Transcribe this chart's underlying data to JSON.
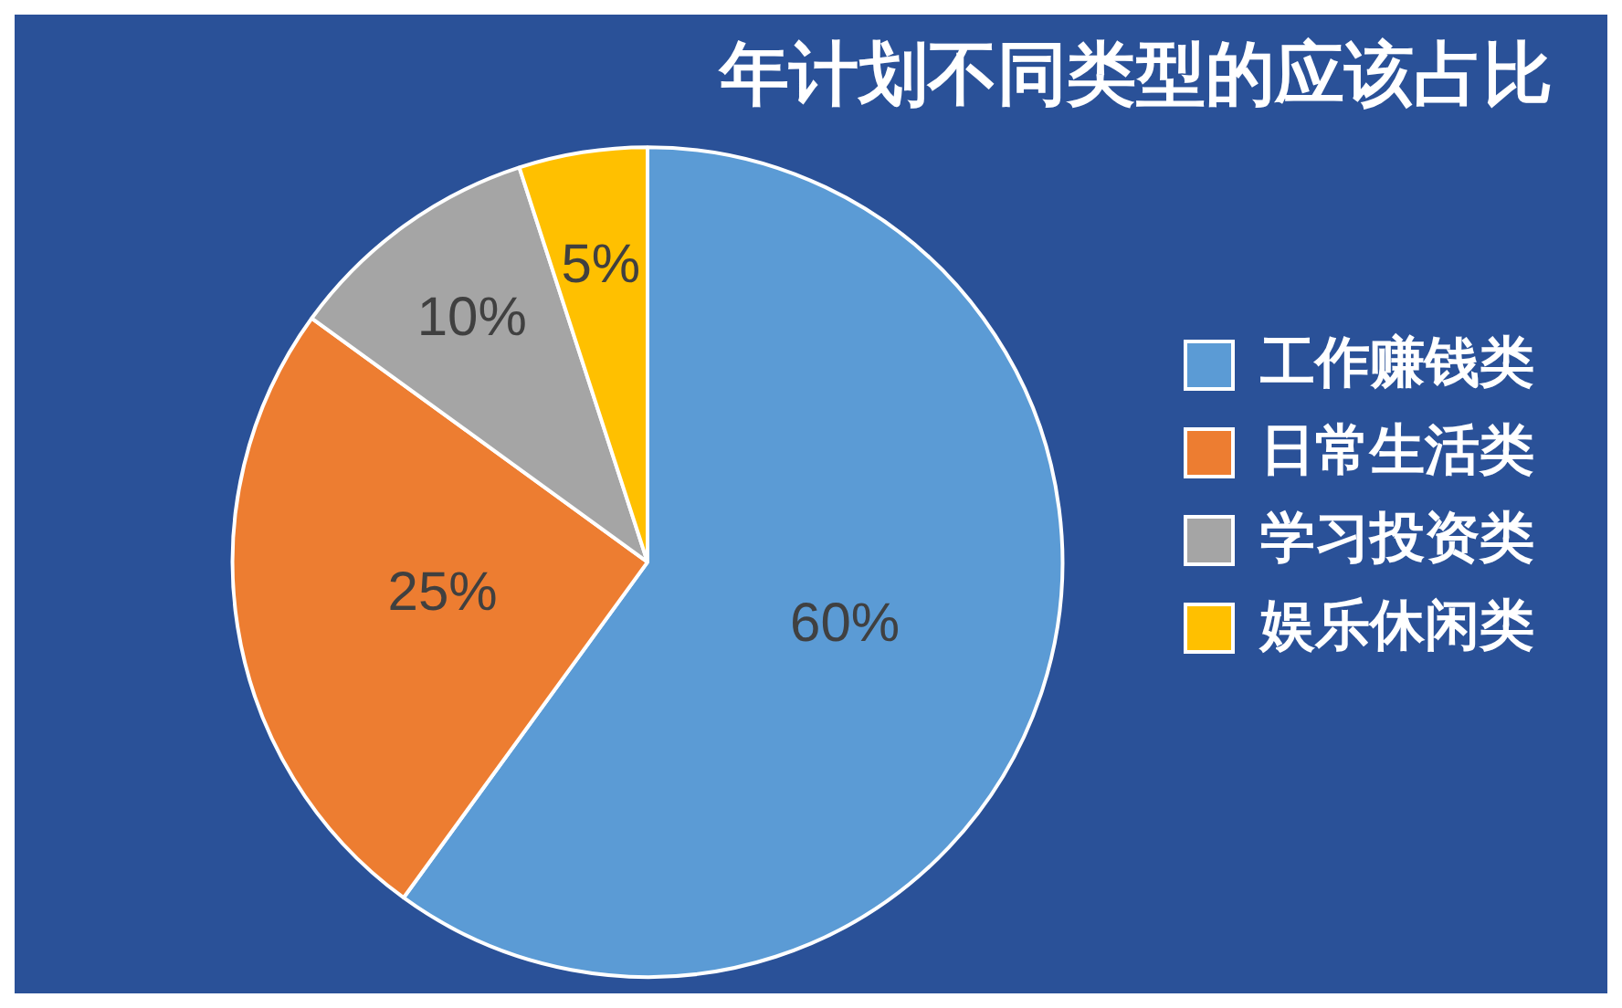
{
  "chart_data": {
    "type": "pie",
    "title": "年计划不同类型的应该占比",
    "categories": [
      "工作赚钱类",
      "日常生活类",
      "学习投资类",
      "娱乐休闲类"
    ],
    "values": [
      60,
      25,
      10,
      5
    ],
    "colors": [
      "#5b9bd5",
      "#ed7d31",
      "#a5a5a5",
      "#ffc000"
    ],
    "value_labels": [
      "60%",
      "25%",
      "10%",
      "5%"
    ],
    "legend": "right"
  }
}
